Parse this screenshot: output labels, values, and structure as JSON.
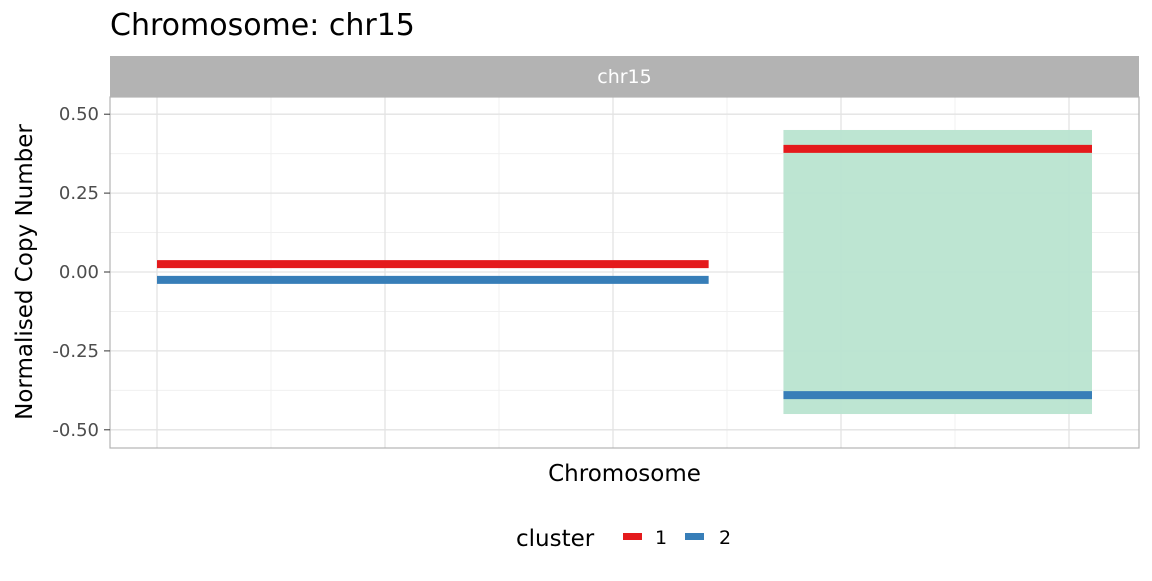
{
  "chart_data": {
    "type": "line",
    "title": "Chromosome: chr15",
    "facet_label": "chr15",
    "xlabel": "Chromosome",
    "ylabel": "Normalised Copy Number",
    "ylim": [
      -0.55,
      0.55
    ],
    "yticks": [
      "0.50",
      "0.25",
      "0.00",
      "-0.25",
      "-0.50"
    ],
    "ytick_values": [
      0.5,
      0.25,
      0.0,
      -0.25,
      -0.5
    ],
    "grid": true,
    "legend": {
      "title": "cluster",
      "position": "bottom"
    },
    "series": [
      {
        "name": "1",
        "color": "#E41A1C",
        "segments": [
          {
            "x": [
              0.0,
              0.59
            ],
            "y": 0.025
          },
          {
            "x": [
              0.67,
              1.0
            ],
            "y": 0.39
          }
        ]
      },
      {
        "name": "2",
        "color": "#377EB8",
        "segments": [
          {
            "x": [
              0.0,
              0.59
            ],
            "y": -0.025
          },
          {
            "x": [
              0.67,
              1.0
            ],
            "y": -0.39
          }
        ]
      }
    ],
    "highlight_region": {
      "x": [
        0.67,
        1.0
      ],
      "y": [
        -0.45,
        0.45
      ],
      "color": "#B9E4D0"
    }
  }
}
